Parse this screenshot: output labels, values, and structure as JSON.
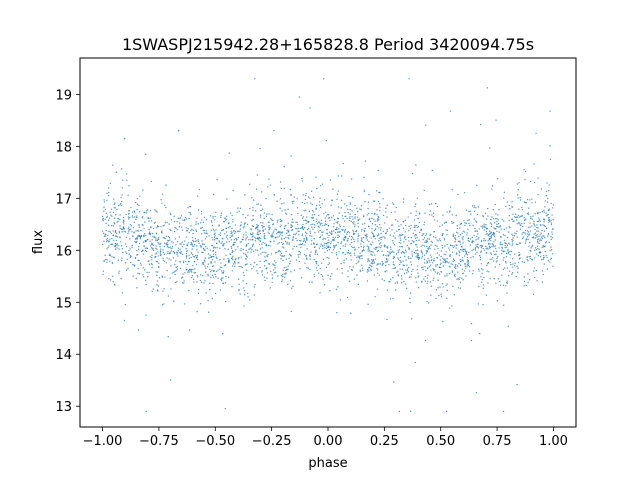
{
  "chart_data": {
    "type": "scatter",
    "title": "1SWASPJ215942.28+165828.8 Period 3420094.75s",
    "xlabel": "phase",
    "ylabel": "flux",
    "xlim": [
      -1.1,
      1.1
    ],
    "ylim": [
      12.6,
      19.7
    ],
    "x_ticks": [
      -1.0,
      -0.75,
      -0.5,
      -0.25,
      0.0,
      0.25,
      0.5,
      0.75,
      1.0
    ],
    "x_tick_labels": [
      "−1.00",
      "−0.75",
      "−0.50",
      "−0.25",
      "0.00",
      "0.25",
      "0.50",
      "0.75",
      "1.00"
    ],
    "y_ticks": [
      13,
      14,
      15,
      16,
      17,
      18,
      19
    ],
    "y_tick_labels": [
      "13",
      "14",
      "15",
      "16",
      "17",
      "18",
      "19"
    ],
    "grid": false,
    "point_color": "#1f77b4",
    "series": [
      {
        "phase_range": [
          -1.0,
          1.0
        ],
        "flux_band_center": [
          {
            "phase": -1.0,
            "flux": 16.35
          },
          {
            "phase": -0.75,
            "flux": 16.05
          },
          {
            "phase": -0.5,
            "flux": 15.95
          },
          {
            "phase": -0.25,
            "flux": 16.2
          },
          {
            "phase": 0.0,
            "flux": 16.35
          },
          {
            "phase": 0.25,
            "flux": 16.05
          },
          {
            "phase": 0.5,
            "flux": 15.95
          },
          {
            "phase": 0.75,
            "flux": 16.2
          },
          {
            "phase": 1.0,
            "flux": 16.35
          }
        ],
        "flux_band_halfwidth": 0.75,
        "outlier_flux_range": [
          12.9,
          19.3
        ]
      }
    ]
  }
}
